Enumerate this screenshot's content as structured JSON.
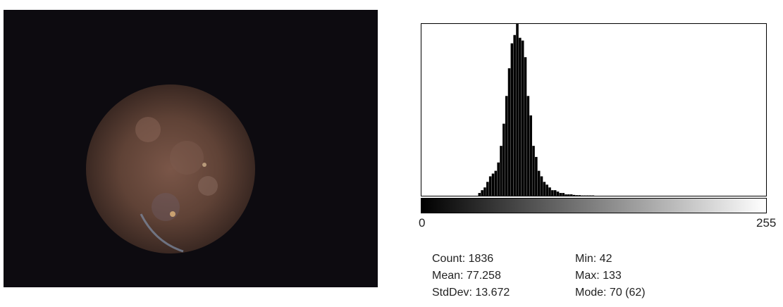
{
  "image": {
    "subject": "round endoscopic view of reddish-brown tissue on black background"
  },
  "histogram": {
    "axis_min_label": "0",
    "axis_max_label": "255"
  },
  "stats": {
    "count": "Count: 1836",
    "mean": "Mean: 77.258",
    "stddev": "StdDev: 13.672",
    "min": "Min: 42",
    "max": "Max: 133",
    "mode": "Mode: 70 (62)"
  },
  "colors": {
    "background": "#ffffff",
    "image_background": "#0d0b10",
    "tissue": "#6b4a3c",
    "histogram_bars": "#000000"
  },
  "chart_data": {
    "type": "bar",
    "xlim": [
      0,
      255
    ],
    "bins_x": [
      40,
      42,
      44,
      46,
      48,
      50,
      52,
      54,
      56,
      58,
      60,
      62,
      64,
      66,
      68,
      70,
      72,
      74,
      76,
      78,
      80,
      82,
      84,
      86,
      88,
      90,
      92,
      94,
      96,
      98,
      100,
      102,
      104,
      106,
      108,
      110,
      112,
      114,
      116,
      118,
      120,
      122,
      124,
      126,
      128,
      130,
      132,
      134
    ],
    "bins_y": [
      0,
      1,
      2,
      3,
      5,
      7,
      8,
      9,
      12,
      18,
      26,
      36,
      46,
      55,
      58,
      62,
      57,
      56,
      50,
      36,
      29,
      18,
      14,
      9,
      7,
      5,
      4,
      3,
      2,
      2,
      1.5,
      1,
      1,
      0.5,
      0.5,
      0.5,
      0.3,
      0.2,
      0.2,
      0.1,
      0.1,
      0.1,
      0.1,
      0.1,
      0,
      0,
      0,
      0
    ],
    "ylim": [
      0,
      62
    ]
  }
}
